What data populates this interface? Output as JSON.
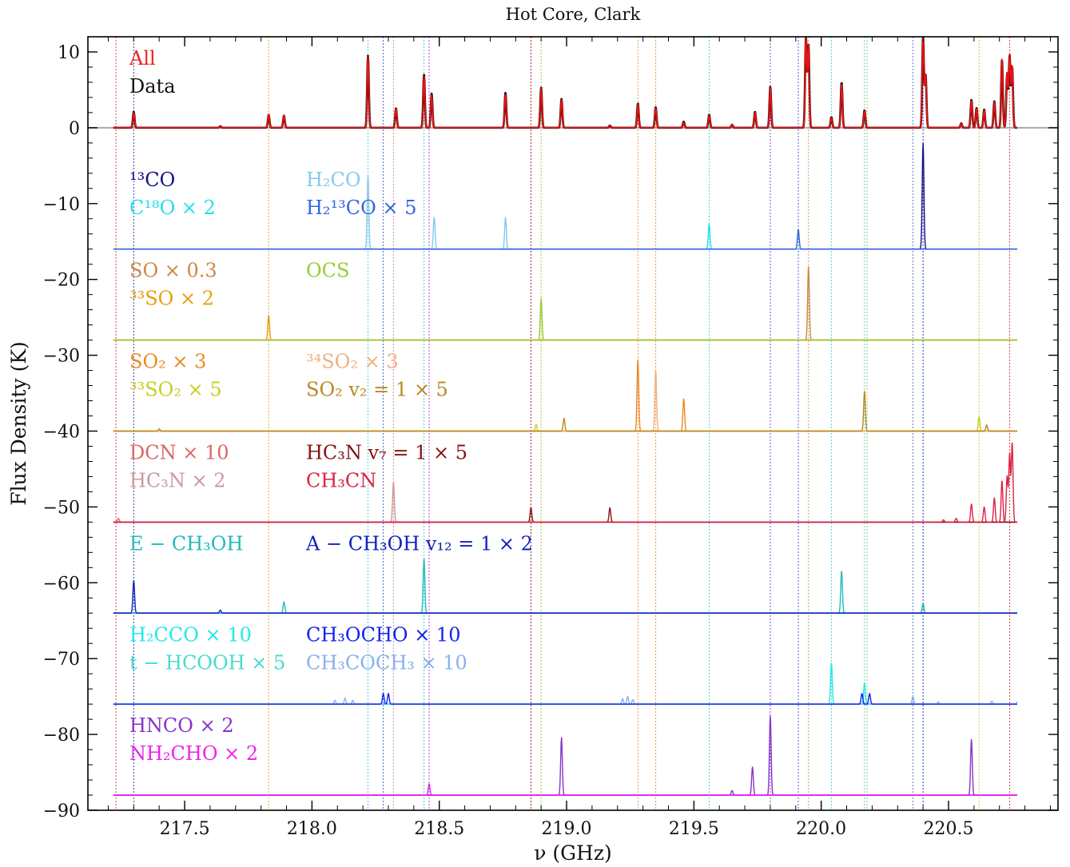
{
  "chart_data": {
    "type": "line",
    "title": "Hot Core, Clark",
    "xlabel": "ν (GHz)",
    "ylabel": "Flux Density (K)",
    "xlim": [
      217.12,
      220.93
    ],
    "ylim": [
      -90,
      12
    ],
    "xticks": [
      217.5,
      218.0,
      218.5,
      219.0,
      219.5,
      220.0,
      220.5
    ],
    "xtick_labels": [
      "217.5",
      "218.0",
      "218.5",
      "219.0",
      "219.5",
      "220.0",
      "220.5"
    ],
    "yticks": [
      10,
      0,
      -10,
      -20,
      -30,
      -40,
      -50,
      -60,
      -70,
      -80,
      -90
    ],
    "ytick_labels": [
      "10",
      "0",
      "−10",
      "−20",
      "−30",
      "−40",
      "−50",
      "−60",
      "−70",
      "−80",
      "−90"
    ],
    "grid": false,
    "zero_line": {
      "y": 0,
      "color": "#aaaaaa"
    },
    "x_range": [
      217.22,
      220.77
    ],
    "vlines": [
      {
        "x": 217.23,
        "color": "#cc2222"
      },
      {
        "x": 217.3,
        "color": "#1122aa"
      },
      {
        "x": 217.83,
        "color": "#e0a000"
      },
      {
        "x": 218.22,
        "color": "#33ccdd"
      },
      {
        "x": 218.28,
        "color": "#3344bb"
      },
      {
        "x": 218.32,
        "color": "#cc7777"
      },
      {
        "x": 218.44,
        "color": "#22cccc"
      },
      {
        "x": 218.46,
        "color": "#aa22cc"
      },
      {
        "x": 218.86,
        "color": "#880000"
      },
      {
        "x": 218.9,
        "color": "#99bb22"
      },
      {
        "x": 219.28,
        "color": "#dd8833"
      },
      {
        "x": 219.35,
        "color": "#dd8833"
      },
      {
        "x": 219.56,
        "color": "#33ccdd"
      },
      {
        "x": 219.8,
        "color": "#7722cc"
      },
      {
        "x": 219.91,
        "color": "#3344bb"
      },
      {
        "x": 219.95,
        "color": "#cc8844"
      },
      {
        "x": 220.04,
        "color": "#33ccdd"
      },
      {
        "x": 220.17,
        "color": "#33ccdd"
      },
      {
        "x": 220.18,
        "color": "#99bb22"
      },
      {
        "x": 220.36,
        "color": "#3366cc"
      },
      {
        "x": 220.4,
        "color": "#111188"
      },
      {
        "x": 220.62,
        "color": "#ccbb22"
      },
      {
        "x": 220.74,
        "color": "#cc2222"
      }
    ],
    "panels": [
      {
        "offset": 0,
        "labels_left": [
          {
            "text": "All",
            "color": "#ee2222"
          },
          {
            "text": "Data",
            "color": "#111111"
          }
        ],
        "labels_right": [],
        "series": [
          {
            "name": "Data",
            "color": "#000000",
            "width": 2.6,
            "peaks": [
              [
                217.3,
                2.1
              ],
              [
                217.64,
                0.2
              ],
              [
                217.83,
                1.7
              ],
              [
                217.89,
                1.6
              ],
              [
                218.22,
                9.5
              ],
              [
                218.33,
                2.6
              ],
              [
                218.44,
                7.0
              ],
              [
                218.47,
                4.5
              ],
              [
                218.76,
                4.6
              ],
              [
                218.9,
                5.3
              ],
              [
                218.98,
                3.8
              ],
              [
                219.17,
                0.3
              ],
              [
                219.28,
                3.2
              ],
              [
                219.35,
                2.7
              ],
              [
                219.46,
                0.8
              ],
              [
                219.56,
                1.7
              ],
              [
                219.65,
                0.4
              ],
              [
                219.74,
                2.1
              ],
              [
                219.8,
                5.4
              ],
              [
                219.94,
                12.0
              ],
              [
                219.95,
                11.0
              ],
              [
                220.04,
                1.4
              ],
              [
                220.08,
                6.0
              ],
              [
                220.17,
                2.3
              ],
              [
                220.4,
                12.0
              ],
              [
                220.41,
                7.0
              ],
              [
                220.55,
                0.6
              ],
              [
                220.59,
                3.7
              ],
              [
                220.61,
                2.6
              ],
              [
                220.64,
                2.4
              ],
              [
                220.68,
                3.5
              ],
              [
                220.71,
                9.0
              ],
              [
                220.73,
                7.0
              ],
              [
                220.74,
                9.5
              ],
              [
                220.75,
                8.0
              ]
            ]
          },
          {
            "name": "All",
            "color": "#ee1111",
            "width": 1.8,
            "peaks": [
              [
                217.3,
                2.0
              ],
              [
                217.64,
                0.2
              ],
              [
                217.83,
                1.8
              ],
              [
                217.89,
                1.6
              ],
              [
                218.22,
                9.4
              ],
              [
                218.33,
                2.6
              ],
              [
                218.44,
                6.8
              ],
              [
                218.47,
                4.3
              ],
              [
                218.76,
                4.4
              ],
              [
                218.9,
                5.2
              ],
              [
                218.98,
                3.7
              ],
              [
                219.17,
                0.3
              ],
              [
                219.28,
                3.1
              ],
              [
                219.35,
                2.6
              ],
              [
                219.46,
                0.7
              ],
              [
                219.56,
                1.6
              ],
              [
                219.65,
                0.4
              ],
              [
                219.74,
                2.0
              ],
              [
                219.8,
                5.3
              ],
              [
                219.94,
                12.0
              ],
              [
                219.95,
                11.0
              ],
              [
                220.04,
                1.3
              ],
              [
                220.08,
                5.8
              ],
              [
                220.17,
                2.2
              ],
              [
                220.4,
                12.0
              ],
              [
                220.41,
                7.0
              ],
              [
                220.55,
                0.6
              ],
              [
                220.59,
                3.6
              ],
              [
                220.61,
                2.5
              ],
              [
                220.64,
                2.3
              ],
              [
                220.68,
                3.4
              ],
              [
                220.71,
                9.2
              ],
              [
                220.73,
                7.2
              ],
              [
                220.74,
                9.6
              ],
              [
                220.75,
                8.2
              ]
            ]
          }
        ]
      },
      {
        "offset": -16,
        "baseline_color": "#3a7ae0",
        "labels_left": [
          {
            "text": "¹³CO",
            "color": "#111188"
          },
          {
            "text": "C¹⁸O × 2",
            "color": "#22e0f0"
          }
        ],
        "labels_right": [
          {
            "text": "H₂CO",
            "color": "#88c8f0"
          },
          {
            "text": "H₂¹³CO × 5",
            "color": "#3366dd"
          }
        ],
        "series": [
          {
            "name": "",
            "color": "#111188",
            "width": 1.4,
            "peaks": [
              [
                220.4,
                14.0
              ]
            ]
          },
          {
            "name": "",
            "color": "#22e0f0",
            "width": 1.4,
            "peaks": [
              [
                219.56,
                3.3
              ]
            ]
          },
          {
            "name": "",
            "color": "#88c8f0",
            "width": 1.4,
            "peaks": [
              [
                218.22,
                9.8
              ],
              [
                218.48,
                4.2
              ],
              [
                218.76,
                4.2
              ]
            ]
          },
          {
            "name": "",
            "color": "#3366dd",
            "width": 1.4,
            "peaks": [
              [
                219.91,
                2.6
              ]
            ]
          }
        ]
      },
      {
        "offset": -28,
        "baseline_color": "#a0c030",
        "labels_left": [
          {
            "text": "SO × 0.3",
            "color": "#cc8844"
          },
          {
            "text": "³³SO × 2",
            "color": "#e8a010"
          }
        ],
        "labels_right": [
          {
            "text": "OCS",
            "color": "#99cc33"
          }
        ],
        "series": [
          {
            "name": "",
            "color": "#cc8844",
            "width": 1.4,
            "peaks": [
              [
                219.95,
                9.8
              ]
            ]
          },
          {
            "name": "",
            "color": "#e8a010",
            "width": 1.4,
            "peaks": [
              [
                217.83,
                3.3
              ]
            ]
          },
          {
            "name": "",
            "color": "#99cc33",
            "width": 1.4,
            "peaks": [
              [
                218.9,
                5.5
              ]
            ]
          }
        ]
      },
      {
        "offset": -40,
        "baseline_color": "#cc8822",
        "labels_left": [
          {
            "text": "SO₂ × 3",
            "color": "#ee8822"
          },
          {
            "text": "³³SO₂ × 5",
            "color": "#cccc22"
          }
        ],
        "labels_right": [
          {
            "text": "³⁴SO₂ × 3",
            "color": "#f0b080"
          },
          {
            "text": "SO₂ v₂ = 1 × 5",
            "color": "#bb8822"
          }
        ],
        "series": [
          {
            "name": "",
            "color": "#ee8822",
            "width": 1.4,
            "peaks": [
              [
                219.28,
                9.5
              ],
              [
                219.46,
                4.3
              ]
            ]
          },
          {
            "name": "",
            "color": "#cccc22",
            "width": 1.4,
            "peaks": [
              [
                218.88,
                0.9
              ],
              [
                220.62,
                1.9
              ]
            ]
          },
          {
            "name": "",
            "color": "#f0b080",
            "width": 1.4,
            "peaks": [
              [
                219.35,
                8.0
              ]
            ]
          },
          {
            "name": "",
            "color": "#bb8822",
            "width": 1.4,
            "peaks": [
              [
                217.4,
                0.3
              ],
              [
                218.99,
                1.7
              ],
              [
                220.17,
                5.3
              ],
              [
                220.65,
                0.8
              ]
            ]
          }
        ]
      },
      {
        "offset": -52,
        "baseline_color": "#cc2244",
        "labels_left": [
          {
            "text": "DCN × 10",
            "color": "#dd6666"
          },
          {
            "text": "HC₃N × 2",
            "color": "#cc9999"
          }
        ],
        "labels_right": [
          {
            "text": "HC₃N v₇ = 1 × 5",
            "color": "#881111"
          },
          {
            "text": "CH₃CN",
            "color": "#dd2244"
          }
        ],
        "series": [
          {
            "name": "",
            "color": "#dd6666",
            "width": 1.4,
            "peaks": [
              [
                217.24,
                0.5
              ]
            ]
          },
          {
            "name": "",
            "color": "#cc9999",
            "width": 1.4,
            "peaks": [
              [
                218.32,
                5.3
              ]
            ]
          },
          {
            "name": "",
            "color": "#881111",
            "width": 1.4,
            "peaks": [
              [
                218.86,
                1.9
              ],
              [
                219.17,
                1.9
              ]
            ]
          },
          {
            "name": "",
            "color": "#dd2244",
            "width": 1.4,
            "peaks": [
              [
                220.48,
                0.3
              ],
              [
                220.53,
                0.5
              ],
              [
                220.59,
                2.4
              ],
              [
                220.64,
                2.0
              ],
              [
                220.68,
                3.2
              ],
              [
                220.71,
                5.5
              ],
              [
                220.73,
                6.0
              ],
              [
                220.74,
                9.0
              ],
              [
                220.75,
                10.5
              ]
            ]
          }
        ]
      },
      {
        "offset": -64,
        "baseline_color": "#1133bb",
        "labels_left": [
          {
            "text": "E − CH₃OH",
            "color": "#22bbbb"
          }
        ],
        "labels_right": [
          {
            "text": "A − CH₃OH v₁₂ = 1 × 2",
            "color": "#1122bb"
          }
        ],
        "series": [
          {
            "name": "",
            "color": "#22bbbb",
            "width": 1.4,
            "peaks": [
              [
                217.89,
                1.5
              ],
              [
                218.44,
                7.2
              ],
              [
                220.08,
                5.6
              ],
              [
                220.4,
                1.3
              ]
            ]
          },
          {
            "name": "",
            "color": "#1122bb",
            "width": 1.4,
            "peaks": [
              [
                217.3,
                4.3
              ],
              [
                217.64,
                0.4
              ]
            ]
          }
        ]
      },
      {
        "offset": -76,
        "baseline_color": "#5588dd",
        "labels_left": [
          {
            "text": "H₂CCO × 10",
            "color": "#22e8e8"
          },
          {
            "text": "t − HCOOH × 5",
            "color": "#44ddcc"
          }
        ],
        "labels_right": [
          {
            "text": "CH₃OCHO × 10",
            "color": "#1122ee"
          },
          {
            "text": "CH₃COCH₃ × 10",
            "color": "#88b0ee"
          }
        ],
        "series": [
          {
            "name": "",
            "color": "#88b0ee",
            "width": 1.4,
            "peaks": [
              [
                218.09,
                0.5
              ],
              [
                218.13,
                0.8
              ],
              [
                218.16,
                0.5
              ],
              [
                219.22,
                0.7
              ],
              [
                219.24,
                1.0
              ],
              [
                219.26,
                0.6
              ],
              [
                220.36,
                1.0
              ],
              [
                220.46,
                0.3
              ],
              [
                220.67,
                0.4
              ],
              [
                220.77,
                0.3
              ]
            ]
          },
          {
            "name": "",
            "color": "#22e8e8",
            "width": 1.4,
            "peaks": [
              [
                220.04,
                5.5
              ],
              [
                220.17,
                2.8
              ]
            ]
          },
          {
            "name": "",
            "color": "#1122ee",
            "width": 1.4,
            "peaks": [
              [
                218.28,
                1.4
              ],
              [
                218.3,
                1.4
              ],
              [
                220.16,
                1.4
              ],
              [
                220.19,
                1.4
              ]
            ]
          }
        ]
      },
      {
        "offset": -88,
        "baseline_color": "#ee22ee",
        "labels_left": [
          {
            "text": "HNCO × 2",
            "color": "#8833cc"
          },
          {
            "text": "NH₂CHO × 2",
            "color": "#ee22ee"
          }
        ],
        "labels_right": [],
        "series": [
          {
            "name": "",
            "color": "#8833cc",
            "width": 1.4,
            "peaks": [
              [
                218.98,
                7.6
              ],
              [
                219.65,
                0.6
              ],
              [
                219.73,
                3.7
              ],
              [
                219.8,
                10.5
              ],
              [
                220.59,
                7.4
              ]
            ]
          },
          {
            "name": "",
            "color": "#ee22ee",
            "width": 1.4,
            "peaks": [
              [
                218.46,
                1.5
              ]
            ]
          }
        ]
      }
    ]
  }
}
